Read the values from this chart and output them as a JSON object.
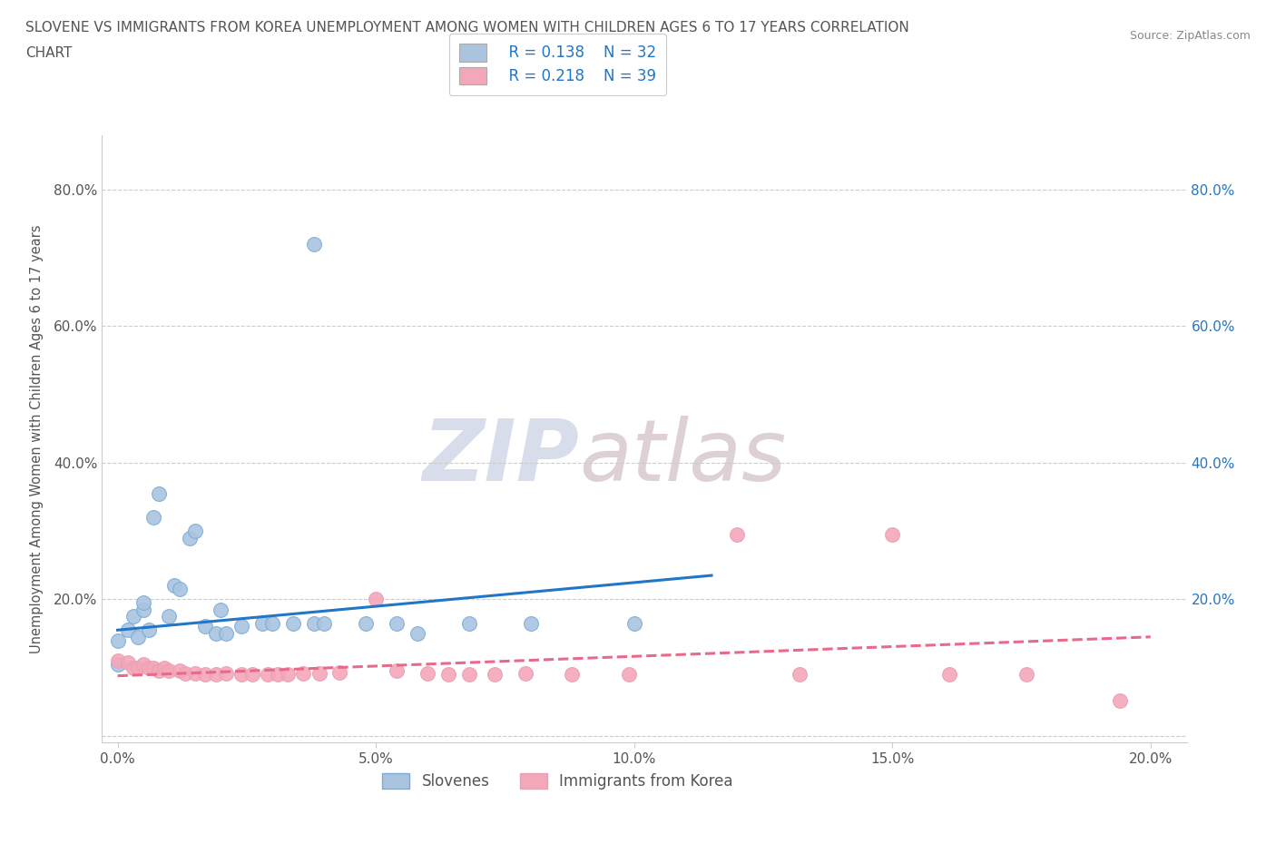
{
  "title_line1": "SLOVENE VS IMMIGRANTS FROM KOREA UNEMPLOYMENT AMONG WOMEN WITH CHILDREN AGES 6 TO 17 YEARS CORRELATION",
  "title_line2": "CHART",
  "source": "Source: ZipAtlas.com",
  "ylabel": "Unemployment Among Women with Children Ages 6 to 17 years",
  "xlim": [
    -0.003,
    0.207
  ],
  "ylim": [
    -0.01,
    0.88
  ],
  "xticks": [
    0.0,
    0.05,
    0.1,
    0.15,
    0.2
  ],
  "yticks": [
    0.0,
    0.2,
    0.4,
    0.6,
    0.8
  ],
  "xtick_labels": [
    "0.0%",
    "5.0%",
    "10.0%",
    "15.0%",
    "20.0%"
  ],
  "ytick_labels_left": [
    "",
    "20.0%",
    "40.0%",
    "60.0%",
    "80.0%"
  ],
  "ytick_labels_right": [
    "",
    "20.0%",
    "40.0%",
    "60.0%",
    "80.0%"
  ],
  "legend_entries": [
    {
      "label": "Slovenes",
      "color": "#aac4e0",
      "R": "0.138",
      "N": "32"
    },
    {
      "label": "Immigrants from Korea",
      "color": "#f4a7b9",
      "R": "0.218",
      "N": "39"
    }
  ],
  "slovene_scatter": [
    [
      0.0,
      0.14
    ],
    [
      0.0,
      0.105
    ],
    [
      0.002,
      0.155
    ],
    [
      0.003,
      0.175
    ],
    [
      0.004,
      0.145
    ],
    [
      0.005,
      0.185
    ],
    [
      0.005,
      0.195
    ],
    [
      0.006,
      0.155
    ],
    [
      0.007,
      0.32
    ],
    [
      0.008,
      0.355
    ],
    [
      0.01,
      0.175
    ],
    [
      0.011,
      0.22
    ],
    [
      0.012,
      0.215
    ],
    [
      0.014,
      0.29
    ],
    [
      0.015,
      0.3
    ],
    [
      0.017,
      0.16
    ],
    [
      0.019,
      0.15
    ],
    [
      0.02,
      0.185
    ],
    [
      0.021,
      0.15
    ],
    [
      0.024,
      0.16
    ],
    [
      0.028,
      0.165
    ],
    [
      0.03,
      0.165
    ],
    [
      0.034,
      0.165
    ],
    [
      0.038,
      0.165
    ],
    [
      0.04,
      0.165
    ],
    [
      0.048,
      0.165
    ],
    [
      0.054,
      0.165
    ],
    [
      0.058,
      0.15
    ],
    [
      0.068,
      0.165
    ],
    [
      0.08,
      0.165
    ],
    [
      0.1,
      0.165
    ],
    [
      0.038,
      0.72
    ]
  ],
  "korea_scatter": [
    [
      0.0,
      0.11
    ],
    [
      0.002,
      0.108
    ],
    [
      0.003,
      0.1
    ],
    [
      0.004,
      0.1
    ],
    [
      0.005,
      0.105
    ],
    [
      0.006,
      0.1
    ],
    [
      0.007,
      0.1
    ],
    [
      0.008,
      0.095
    ],
    [
      0.009,
      0.1
    ],
    [
      0.01,
      0.095
    ],
    [
      0.012,
      0.095
    ],
    [
      0.013,
      0.092
    ],
    [
      0.015,
      0.092
    ],
    [
      0.017,
      0.09
    ],
    [
      0.019,
      0.09
    ],
    [
      0.021,
      0.092
    ],
    [
      0.024,
      0.09
    ],
    [
      0.026,
      0.09
    ],
    [
      0.029,
      0.09
    ],
    [
      0.031,
      0.09
    ],
    [
      0.033,
      0.09
    ],
    [
      0.036,
      0.092
    ],
    [
      0.039,
      0.092
    ],
    [
      0.043,
      0.093
    ],
    [
      0.05,
      0.2
    ],
    [
      0.054,
      0.095
    ],
    [
      0.06,
      0.092
    ],
    [
      0.064,
      0.09
    ],
    [
      0.068,
      0.09
    ],
    [
      0.073,
      0.09
    ],
    [
      0.079,
      0.092
    ],
    [
      0.088,
      0.09
    ],
    [
      0.099,
      0.09
    ],
    [
      0.12,
      0.295
    ],
    [
      0.132,
      0.09
    ],
    [
      0.15,
      0.295
    ],
    [
      0.161,
      0.09
    ],
    [
      0.176,
      0.09
    ],
    [
      0.194,
      0.052
    ]
  ],
  "slovene_line_x": [
    0.0,
    0.115
  ],
  "slovene_line_y": [
    0.155,
    0.235
  ],
  "korea_line_x": [
    0.0,
    0.2
  ],
  "korea_line_y": [
    0.088,
    0.145
  ],
  "slovene_line_color": "#2176c7",
  "korea_line_color": "#e8698a",
  "scatter_color_slovene": "#aac4e0",
  "scatter_color_korea": "#f4a7b9",
  "scatter_edge_slovene": "#7aadd4",
  "scatter_edge_korea": "#e8a0b4",
  "watermark_zip": "ZIP",
  "watermark_atlas": "atlas",
  "grid_color": "#cccccc",
  "background_color": "#ffffff",
  "title_color": "#555555",
  "axis_label_color": "#555555",
  "tick_color_left": "#555555",
  "tick_color_right": "#2176c7",
  "legend_text_color": "#2176c7"
}
